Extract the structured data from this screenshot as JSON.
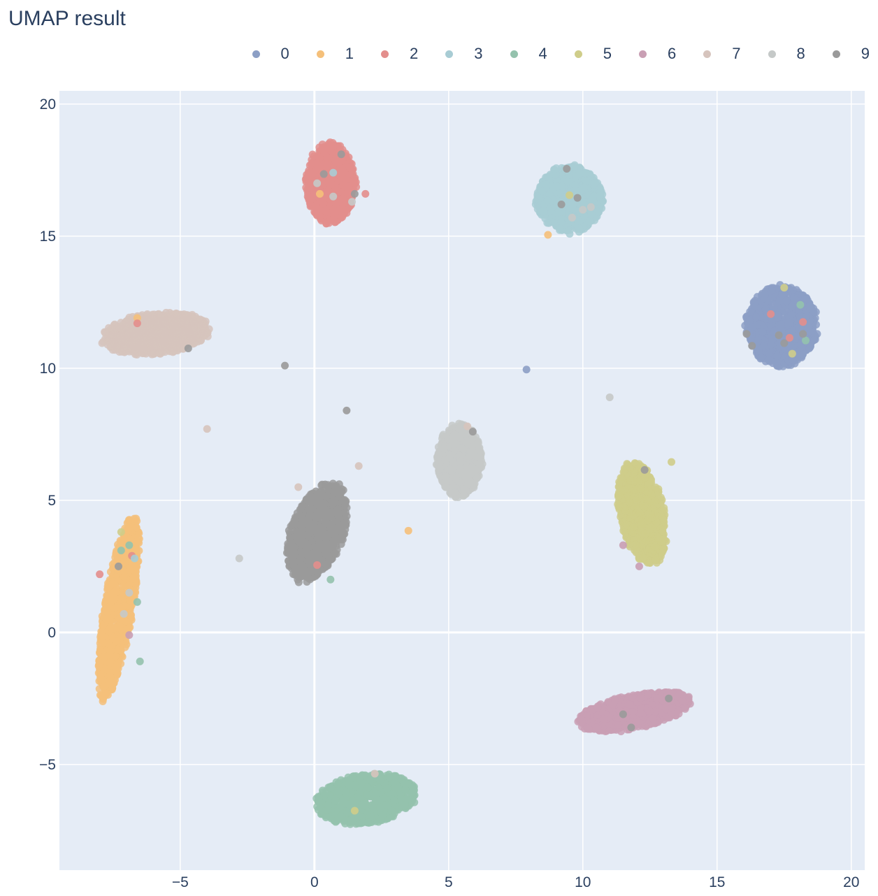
{
  "chart_data": {
    "type": "scatter",
    "title": "UMAP result",
    "xlabel": "",
    "ylabel": "",
    "xlim": [
      -9.5,
      20.5
    ],
    "ylim": [
      -9.0,
      20.5
    ],
    "x_ticks": [
      -5,
      0,
      5,
      10,
      15,
      20
    ],
    "y_ticks": [
      -5,
      0,
      5,
      10,
      15,
      20
    ],
    "x_tick_labels": [
      "−5",
      "0",
      "5",
      "10",
      "15",
      "20"
    ],
    "y_tick_labels": [
      "−5",
      "0",
      "5",
      "10",
      "15",
      "20"
    ],
    "grid": true,
    "legend_position": "top-right",
    "series": [
      {
        "name": "0",
        "color": "#8c9fc5",
        "cluster": {
          "cx": 17.4,
          "cy": 11.6,
          "rx": 1.35,
          "ry": 1.55,
          "angle": 0,
          "n": 900
        },
        "points": [
          [
            7.9,
            9.95
          ]
        ]
      },
      {
        "name": "1",
        "color": "#f5c07a",
        "cluster": {
          "cx": -7.3,
          "cy": 0.9,
          "rx": 0.55,
          "ry": 3.6,
          "angle": -9,
          "n": 900
        },
        "points": [
          [
            8.7,
            15.05
          ],
          [
            3.5,
            3.85
          ],
          [
            0.2,
            16.6
          ],
          [
            -6.6,
            11.9
          ]
        ]
      },
      {
        "name": "2",
        "color": "#e38e8c",
        "cluster": {
          "cx": 0.6,
          "cy": 17.0,
          "rx": 0.95,
          "ry": 1.55,
          "angle": 0,
          "n": 800
        },
        "points": [
          [
            1.9,
            16.6
          ],
          [
            -8.0,
            2.2
          ],
          [
            -6.8,
            2.9
          ],
          [
            17.0,
            12.05
          ],
          [
            17.7,
            11.15
          ],
          [
            -6.6,
            11.7
          ],
          [
            18.2,
            11.75
          ],
          [
            0.1,
            2.55
          ]
        ]
      },
      {
        "name": "3",
        "color": "#a8ccd4",
        "cluster": {
          "cx": 9.5,
          "cy": 16.4,
          "rx": 1.25,
          "ry": 1.3,
          "angle": 0,
          "n": 800
        },
        "points": [
          [
            -6.7,
            2.8
          ],
          [
            0.7,
            17.4
          ]
        ]
      },
      {
        "name": "4",
        "color": "#94c2ad",
        "cluster": {
          "cx": 1.9,
          "cy": -6.3,
          "rx": 1.95,
          "ry": 0.95,
          "angle": 8,
          "n": 900
        },
        "points": [
          [
            -6.9,
            3.3
          ],
          [
            -6.5,
            -1.1
          ],
          [
            -6.6,
            1.15
          ],
          [
            18.3,
            11.05
          ],
          [
            18.1,
            12.4
          ],
          [
            0.6,
            2.0
          ],
          [
            -7.2,
            3.1
          ]
        ]
      },
      {
        "name": "5",
        "color": "#cfcd8a",
        "cluster": {
          "cx": 12.2,
          "cy": 4.5,
          "rx": 0.85,
          "ry": 2.0,
          "angle": 12,
          "n": 800
        },
        "points": [
          [
            13.3,
            6.45
          ],
          [
            9.5,
            16.55
          ],
          [
            17.5,
            13.05
          ],
          [
            1.5,
            -6.75
          ],
          [
            -7.2,
            3.8
          ],
          [
            17.8,
            10.55
          ]
        ]
      },
      {
        "name": "6",
        "color": "#c99fb4",
        "cluster": {
          "cx": 11.9,
          "cy": -3.0,
          "rx": 2.2,
          "ry": 0.65,
          "angle": 12,
          "n": 800
        },
        "points": [
          [
            11.5,
            3.3
          ],
          [
            12.1,
            2.5
          ],
          [
            -6.9,
            -0.1
          ]
        ]
      },
      {
        "name": "7",
        "color": "#d6c4bd",
        "cluster": {
          "cx": -5.9,
          "cy": 11.3,
          "rx": 2.05,
          "ry": 0.8,
          "angle": 6,
          "n": 800
        },
        "points": [
          [
            -4.0,
            7.7
          ],
          [
            1.65,
            6.3
          ],
          [
            5.7,
            7.8
          ],
          [
            2.25,
            -5.35
          ],
          [
            -0.6,
            5.5
          ]
        ]
      },
      {
        "name": "8",
        "color": "#c5c9c8",
        "cluster": {
          "cx": 5.4,
          "cy": 6.5,
          "rx": 0.85,
          "ry": 1.4,
          "angle": 0,
          "n": 800
        },
        "points": [
          [
            11.0,
            8.9
          ],
          [
            -2.8,
            2.8
          ],
          [
            9.6,
            15.7
          ],
          [
            10.3,
            16.1
          ],
          [
            10.0,
            16.0
          ],
          [
            -6.9,
            1.5
          ],
          [
            -7.1,
            0.7
          ],
          [
            0.7,
            16.5
          ],
          [
            1.4,
            16.3
          ],
          [
            0.1,
            17.0
          ]
        ]
      },
      {
        "name": "9",
        "color": "#9a9a9a",
        "cluster": {
          "cx": 0.1,
          "cy": 3.8,
          "rx": 1.0,
          "ry": 2.0,
          "angle": -20,
          "n": 900
        },
        "points": [
          [
            -1.1,
            10.1
          ],
          [
            1.2,
            8.4
          ],
          [
            0.4,
            5.6
          ],
          [
            5.9,
            7.6
          ],
          [
            9.4,
            17.55
          ],
          [
            9.2,
            16.2
          ],
          [
            9.8,
            16.45
          ],
          [
            1.0,
            18.1
          ],
          [
            0.35,
            17.35
          ],
          [
            1.5,
            16.6
          ],
          [
            17.3,
            11.25
          ],
          [
            16.3,
            10.85
          ],
          [
            18.2,
            11.3
          ],
          [
            16.1,
            11.3
          ],
          [
            17.5,
            10.95
          ],
          [
            12.3,
            6.15
          ],
          [
            11.5,
            -3.1
          ],
          [
            13.2,
            -2.5
          ],
          [
            11.8,
            -3.6
          ],
          [
            -7.3,
            2.5
          ],
          [
            -4.7,
            10.75
          ]
        ]
      }
    ]
  }
}
